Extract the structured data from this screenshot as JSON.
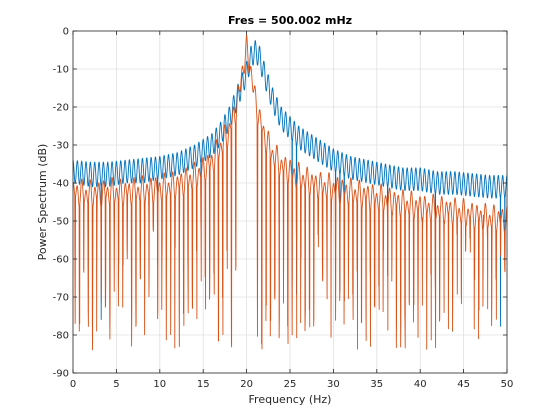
{
  "chart_data": {
    "type": "line",
    "title": "Fres = 500.002 mHz",
    "xlabel": "Frequency (Hz)",
    "ylabel": "Power Spectrum (dB)",
    "xlim": [
      0,
      50
    ],
    "ylim": [
      -90,
      0
    ],
    "xticks": [
      0,
      5,
      10,
      15,
      20,
      25,
      30,
      35,
      40,
      45,
      50
    ],
    "yticks": [
      0,
      -10,
      -20,
      -30,
      -40,
      -50,
      -60,
      -70,
      -80,
      -90
    ],
    "grid": true,
    "legend": "none",
    "series": [
      {
        "color": "#0072BD",
        "peak_frequency": 21,
        "peak_value": -2.5,
        "description": "Spectrum with peak near 21 Hz",
        "x": [
          0,
          2,
          4,
          6,
          8,
          10,
          12,
          14,
          16,
          17,
          18,
          19,
          20,
          20.5,
          21,
          21.5,
          22,
          23,
          24,
          26,
          28,
          30,
          32,
          34,
          36,
          38,
          40,
          42,
          44,
          46,
          48,
          50
        ],
        "upper": [
          -34,
          -34.5,
          -34.5,
          -34,
          -33.5,
          -33,
          -32,
          -30,
          -27,
          -24,
          -20,
          -14,
          -8,
          -4,
          -2.5,
          -4,
          -8,
          -15,
          -20,
          -25,
          -28,
          -31,
          -33,
          -34,
          -35,
          -36,
          -36,
          -37,
          -37,
          -37.5,
          -38,
          -38
        ],
        "lower": [
          -40,
          -41,
          -41,
          -40,
          -40,
          -39,
          -38,
          -36,
          -33,
          -30,
          -26,
          -20,
          -14,
          -10,
          -8,
          -10,
          -14,
          -21,
          -26,
          -31,
          -34,
          -37,
          -39,
          -40,
          -41,
          -42,
          -42,
          -43,
          -43,
          -43.5,
          -44,
          -44
        ]
      },
      {
        "color": "#D95319",
        "peak_frequency": 20,
        "peak_value": -2.5,
        "description": "Spectrum with peak at 20 Hz and deep nulls",
        "x": [
          0,
          2,
          4,
          6,
          8,
          10,
          12,
          14,
          16,
          17,
          18,
          19,
          19.5,
          20,
          20.5,
          21,
          22,
          23,
          24,
          26,
          28,
          30,
          32,
          34,
          36,
          38,
          40,
          42,
          44,
          46,
          48,
          50
        ],
        "upper": [
          -40,
          -40.5,
          -40,
          -40,
          -39.5,
          -39,
          -38,
          -36,
          -32,
          -28,
          -24,
          -16,
          -8,
          -2.5,
          -8,
          -16,
          -25,
          -30,
          -33,
          -36,
          -38,
          -39,
          -40,
          -41,
          -42,
          -43,
          -44,
          -44.5,
          -45,
          -46,
          -47,
          -47
        ]
      }
    ],
    "annotations": []
  }
}
